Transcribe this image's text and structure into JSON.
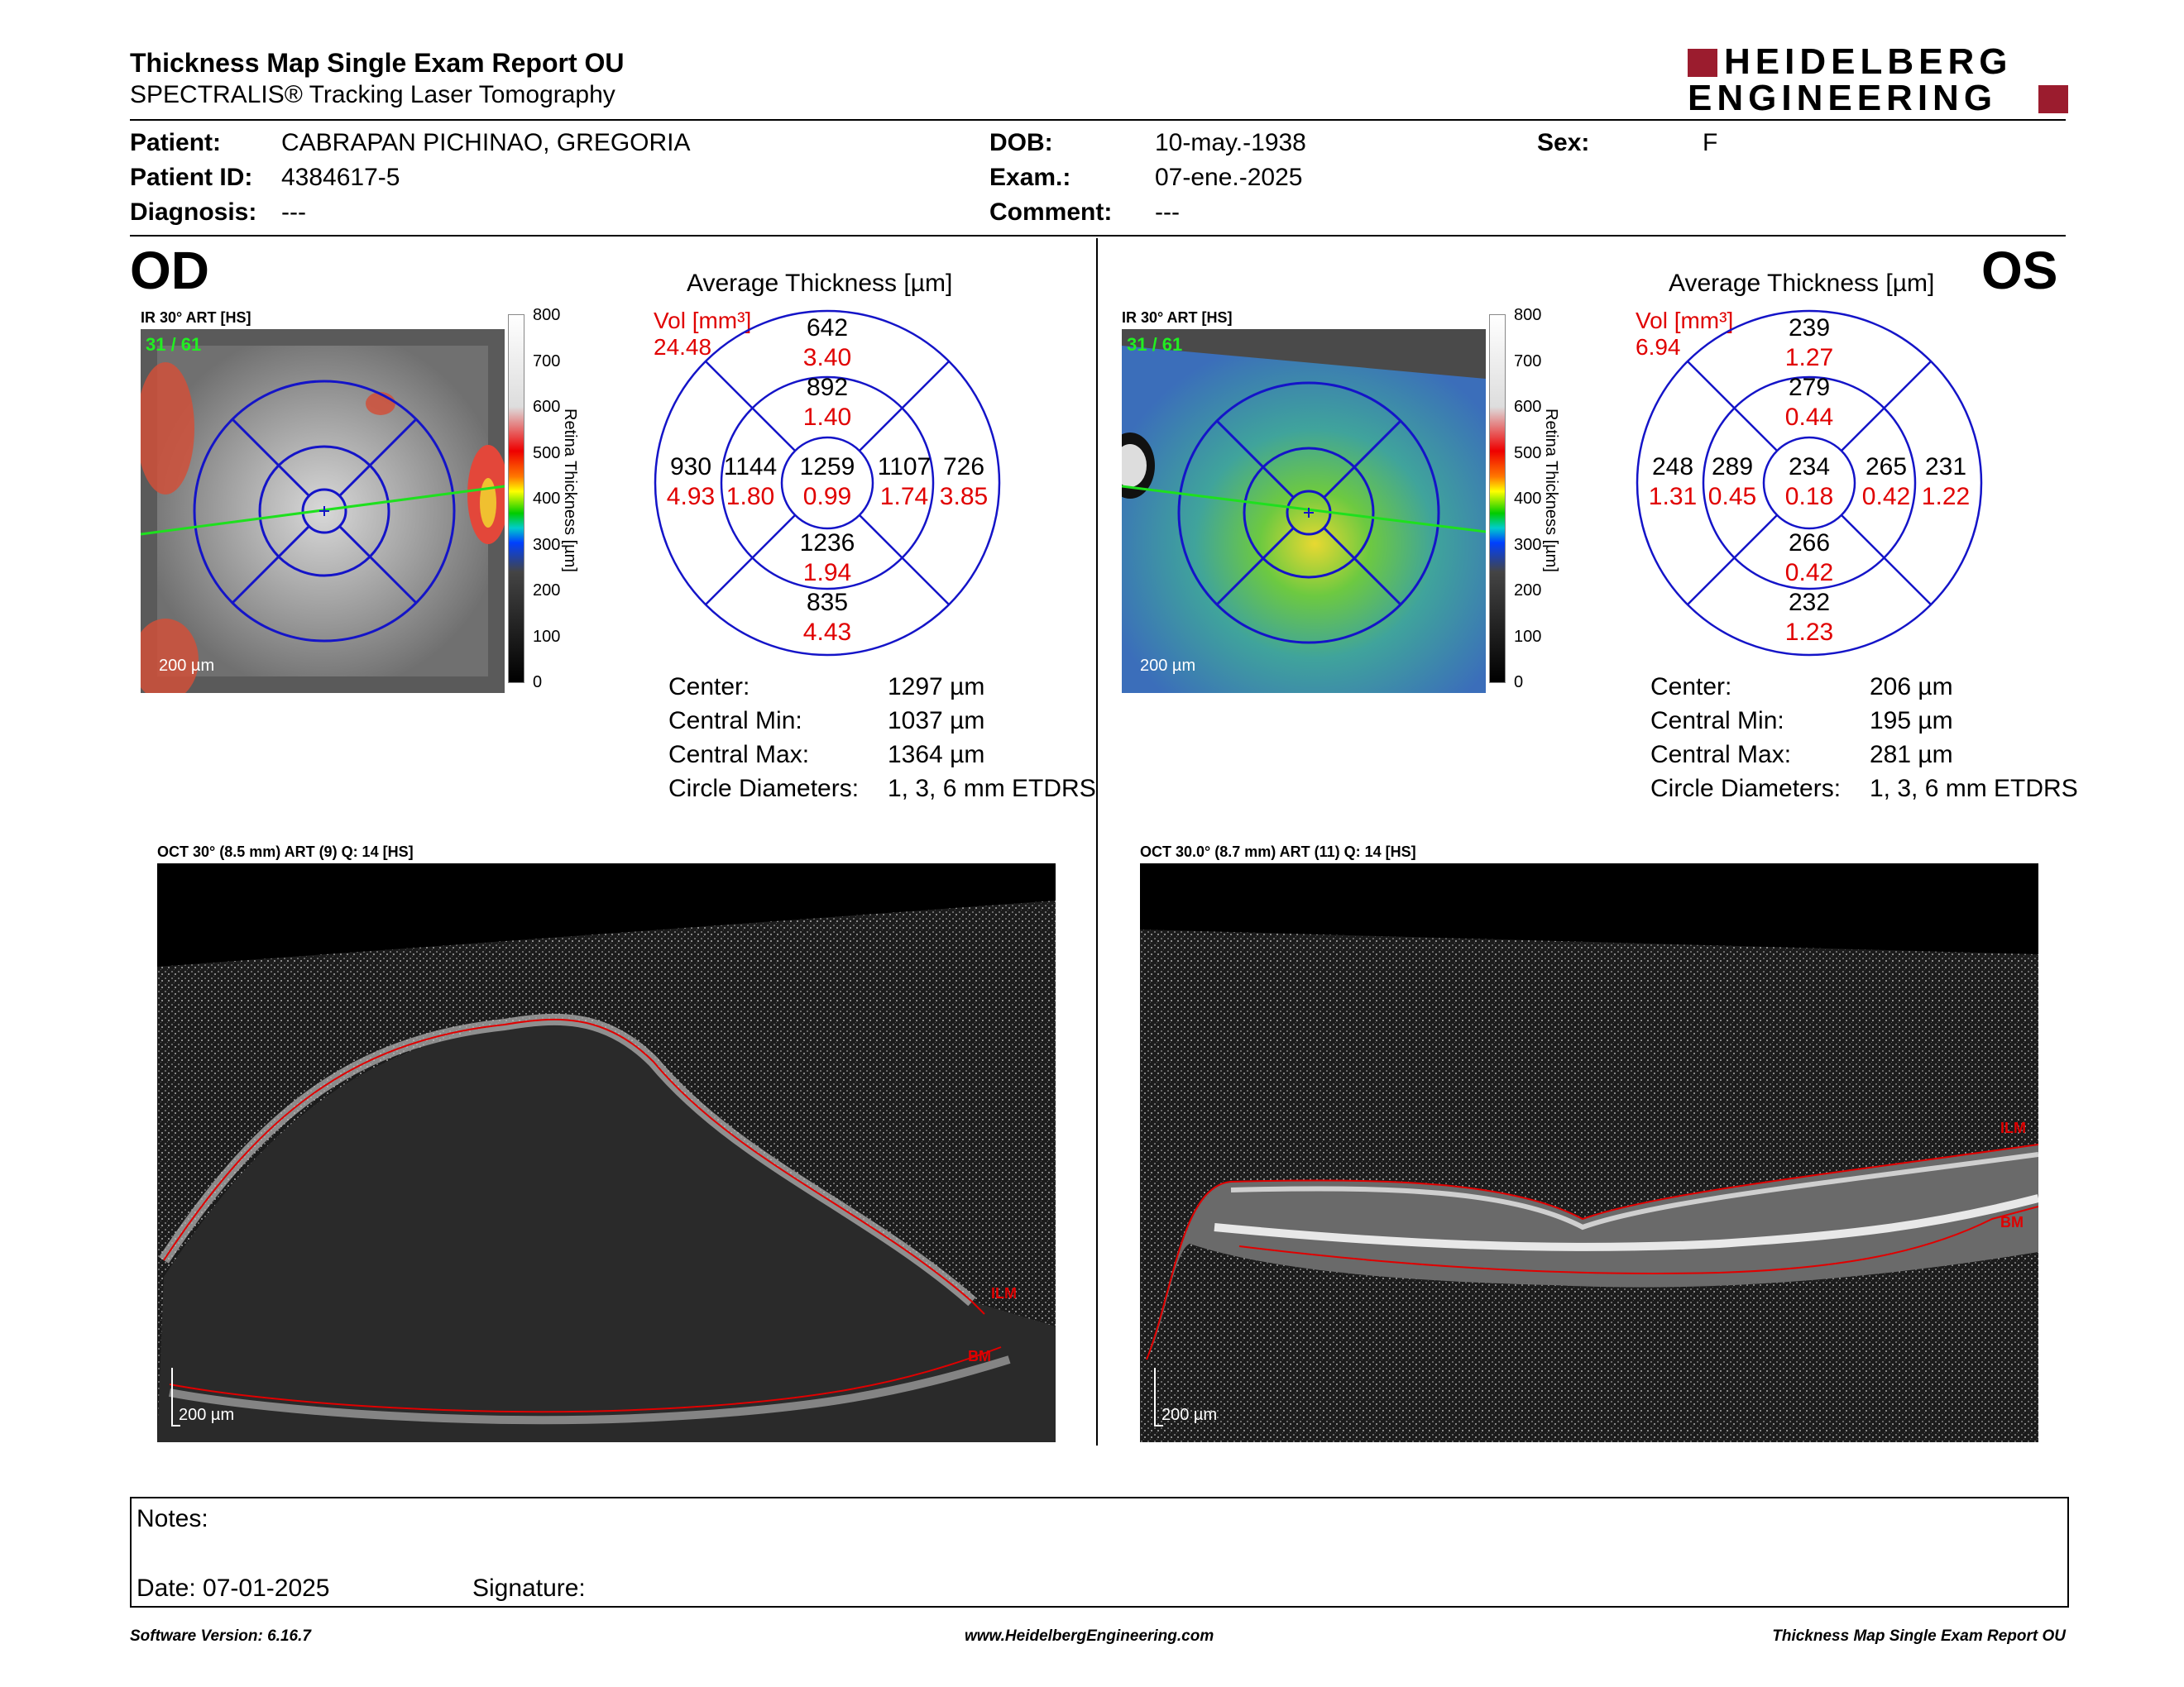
{
  "header": {
    "title": "Thickness Map Single Exam Report OU",
    "subtitle": "SPECTRALIS® Tracking Laser Tomography",
    "logo_line1": "HEIDELBERG",
    "logo_line2": "ENGINEERING",
    "logo_color": "#9b1c2e"
  },
  "patient": {
    "patient_label": "Patient:",
    "patient_value": "CABRAPAN PICHINAO, GREGORIA",
    "id_label": "Patient ID:",
    "id_value": "4384617-5",
    "diag_label": "Diagnosis:",
    "diag_value": "---",
    "dob_label": "DOB:",
    "dob_value": "10-may.-1938",
    "exam_label": "Exam.:",
    "exam_value": "07-ene.-2025",
    "comment_label": "Comment:",
    "comment_value": "---",
    "sex_label": "Sex:",
    "sex_value": "F"
  },
  "od": {
    "eye": "OD",
    "ir_label": "IR 30° ART [HS]",
    "frame": "31 / 61",
    "scale_bar": "200 µm",
    "scale_ticks": [
      "800",
      "700",
      "600",
      "500",
      "400",
      "300",
      "200",
      "100",
      "0"
    ],
    "scale_title": "Retina Thickness [µm]",
    "avg_title": "Average Thickness [µm]",
    "vol_label": "Vol [mm³]",
    "vol_value": "24.48",
    "sectors": {
      "outer_sup": [
        "642",
        "3.40"
      ],
      "inner_sup": [
        "892",
        "1.40"
      ],
      "outer_temp": [
        "930",
        "4.93"
      ],
      "inner_temp": [
        "1144",
        "1.80"
      ],
      "center": [
        "1259",
        "0.99"
      ],
      "inner_nas": [
        "1107",
        "1.74"
      ],
      "outer_nas": [
        "726",
        "3.85"
      ],
      "inner_inf": [
        "1236",
        "1.94"
      ],
      "outer_inf": [
        "835",
        "4.43"
      ]
    },
    "metrics": [
      [
        "Center:",
        "1297 µm"
      ],
      [
        "Central Min:",
        "1037 µm"
      ],
      [
        "Central Max:",
        "1364 µm"
      ],
      [
        "Circle Diameters:",
        "1, 3, 6 mm ETDRS"
      ]
    ],
    "oct_label": "OCT 30° (8.5 mm) ART (9) Q: 14 [HS]",
    "ilm": "ILM",
    "bm": "BM",
    "oct_scale": "200 µm"
  },
  "os": {
    "eye": "OS",
    "ir_label": "IR 30° ART [HS]",
    "frame": "31 / 61",
    "scale_bar": "200 µm",
    "scale_ticks": [
      "800",
      "700",
      "600",
      "500",
      "400",
      "300",
      "200",
      "100",
      "0"
    ],
    "scale_title": "Retina Thickness [µm]",
    "avg_title": "Average Thickness [µm]",
    "vol_label": "Vol [mm³]",
    "vol_value": "6.94",
    "sectors": {
      "outer_sup": [
        "239",
        "1.27"
      ],
      "inner_sup": [
        "279",
        "0.44"
      ],
      "outer_temp": [
        "248",
        "1.31"
      ],
      "inner_temp": [
        "289",
        "0.45"
      ],
      "center": [
        "234",
        "0.18"
      ],
      "inner_nas": [
        "265",
        "0.42"
      ],
      "outer_nas": [
        "231",
        "1.22"
      ],
      "inner_inf": [
        "266",
        "0.42"
      ],
      "outer_inf": [
        "232",
        "1.23"
      ]
    },
    "metrics": [
      [
        "Center:",
        "206 µm"
      ],
      [
        "Central Min:",
        "195 µm"
      ],
      [
        "Central Max:",
        "281 µm"
      ],
      [
        "Circle Diameters:",
        "1, 3, 6 mm ETDRS"
      ]
    ],
    "oct_label": "OCT 30.0° (8.7 mm) ART (11) Q: 14 [HS]",
    "ilm": "ILM",
    "bm": "BM",
    "oct_scale": "200 µm"
  },
  "notes": {
    "notes_label": "Notes:",
    "date_label": "Date: 07-01-2025",
    "signature_label": "Signature:"
  },
  "footer": {
    "left": "Software Version: 6.16.7",
    "center": "www.HeidelbergEngineering.com",
    "right": "Thickness Map Single Exam Report OU"
  }
}
